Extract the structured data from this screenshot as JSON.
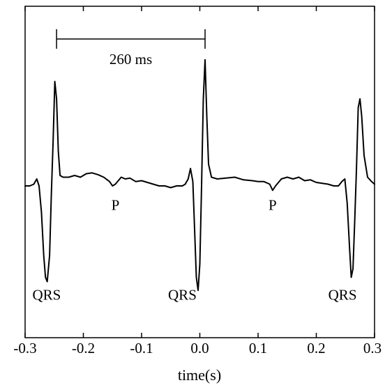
{
  "chart_data": {
    "type": "line",
    "title": "",
    "xlabel": "time(s)",
    "ylabel": "",
    "xlim": [
      -0.3,
      0.3
    ],
    "ylim": [
      -1.0,
      1.0
    ],
    "grid": false,
    "xticks": [
      -0.3,
      -0.2,
      -0.1,
      0.0,
      0.1,
      0.2,
      0.3
    ],
    "xtick_labels": [
      "-0.3",
      "-0.2",
      "-0.1",
      "0.0",
      "0.1",
      "0.2",
      "0.3"
    ],
    "series": [
      {
        "color": "#000000",
        "x": [
          -0.3,
          -0.292,
          -0.285,
          -0.28,
          -0.276,
          -0.272,
          -0.268,
          -0.265,
          -0.262,
          -0.258,
          -0.255,
          -0.252,
          -0.249,
          -0.246,
          -0.243,
          -0.24,
          -0.235,
          -0.225,
          -0.215,
          -0.205,
          -0.195,
          -0.185,
          -0.175,
          -0.165,
          -0.155,
          -0.15,
          -0.145,
          -0.14,
          -0.135,
          -0.128,
          -0.12,
          -0.11,
          -0.1,
          -0.09,
          -0.08,
          -0.07,
          -0.06,
          -0.05,
          -0.04,
          -0.03,
          -0.025,
          -0.02,
          -0.016,
          -0.012,
          -0.009,
          -0.006,
          -0.003,
          0.0,
          0.003,
          0.006,
          0.009,
          0.012,
          0.015,
          0.02,
          0.03,
          0.045,
          0.06,
          0.075,
          0.09,
          0.1,
          0.11,
          0.12,
          0.125,
          0.13,
          0.14,
          0.15,
          0.16,
          0.17,
          0.18,
          0.19,
          0.2,
          0.21,
          0.22,
          0.23,
          0.238,
          0.244,
          0.249,
          0.253,
          0.257,
          0.26,
          0.263,
          0.266,
          0.269,
          0.272,
          0.275,
          0.278,
          0.282,
          0.288,
          0.295,
          0.3
        ],
        "y": [
          0.0,
          0.0,
          0.02,
          0.08,
          0.0,
          -0.3,
          -0.8,
          -1.05,
          -1.1,
          -0.8,
          -0.1,
          0.5,
          1.2,
          1.0,
          0.4,
          0.12,
          0.1,
          0.1,
          0.12,
          0.1,
          0.14,
          0.15,
          0.13,
          0.1,
          0.05,
          0.0,
          0.02,
          0.06,
          0.1,
          0.08,
          0.09,
          0.05,
          0.06,
          0.04,
          0.02,
          0.0,
          0.0,
          -0.02,
          0.0,
          0.0,
          0.02,
          0.08,
          0.2,
          0.05,
          -0.5,
          -1.05,
          -1.2,
          -0.9,
          0.0,
          1.0,
          1.45,
          0.8,
          0.25,
          0.1,
          0.08,
          0.09,
          0.1,
          0.07,
          0.06,
          0.05,
          0.05,
          0.02,
          -0.05,
          0.0,
          0.08,
          0.1,
          0.08,
          0.1,
          0.06,
          0.07,
          0.04,
          0.03,
          0.02,
          0.0,
          0.0,
          0.05,
          0.08,
          -0.2,
          -0.7,
          -1.05,
          -0.95,
          -0.4,
          0.2,
          0.9,
          1.0,
          0.8,
          0.35,
          0.1,
          0.05,
          0.02
        ]
      }
    ],
    "annotations": [
      {
        "text": "260 ms",
        "x1": -0.246,
        "x2": 0.009
      },
      {
        "text": "QRS",
        "x": -0.263,
        "y": -1.25
      },
      {
        "text": "QRS",
        "x": -0.03,
        "y": -1.25
      },
      {
        "text": "QRS",
        "x": 0.245,
        "y": -1.25
      },
      {
        "text": "P",
        "x": -0.145,
        "y": -0.22
      },
      {
        "text": "P",
        "x": 0.125,
        "y": -0.22
      }
    ]
  }
}
